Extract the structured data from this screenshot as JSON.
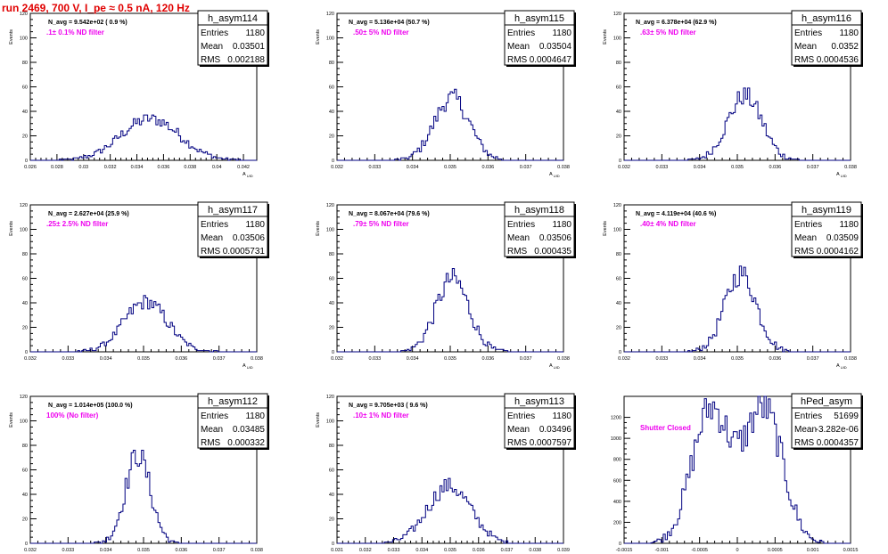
{
  "run_title": "run 2469,   700 V, I_pe ≈ 0.5 nA, 120 Hz",
  "colors": {
    "histogram": "#000080",
    "annotation": "#ee00ee",
    "title": "#e00000",
    "frame": "#000000"
  },
  "stats_labels": {
    "entries": "Entries",
    "mean": "Mean",
    "rms": "RMS"
  },
  "chart_data": [
    {
      "type": "histogram",
      "name": "h_asym114",
      "navg": "N_avg = 9.542e+02 ( 0.9 %)",
      "label": ".1± 0.1% ND filter",
      "entries": "1180",
      "mean": "0.03501",
      "rms": "0.002188",
      "ylabel": "Events",
      "xlabel": "A_UID",
      "xlim": [
        0.026,
        0.043
      ],
      "ylim": [
        0,
        120
      ],
      "xticks": [
        0.026,
        0.028,
        0.03,
        0.032,
        0.034,
        0.036,
        0.038,
        0.04,
        0.042
      ],
      "xticklabels": [
        "0.026",
        "0.028",
        "0.03",
        "0.032",
        "0.034",
        "0.036",
        "0.038",
        "0.04",
        "0.042"
      ],
      "yticks": [
        0,
        20,
        40,
        60,
        80,
        100,
        120
      ],
      "center": 0.03501,
      "sigma": 0.002188,
      "peak": 40,
      "lo": 0.0282,
      "hi": 0.0418
    },
    {
      "type": "histogram",
      "name": "h_asym115",
      "navg": "N_avg = 5.136e+04 (50.7 %)",
      "label": ".50± 5% ND filter",
      "entries": "1180",
      "mean": "0.03504",
      "rms": "0.0004647",
      "ylabel": "Events",
      "xlabel": "A_UID",
      "xlim": [
        0.032,
        0.038
      ],
      "ylim": [
        0,
        120
      ],
      "xticks": [
        0.032,
        0.033,
        0.034,
        0.035,
        0.036,
        0.037,
        0.038
      ],
      "xticklabels": [
        "0.032",
        "0.033",
        "0.034",
        "0.035",
        "0.036",
        "0.037",
        "0.038"
      ],
      "yticks": [
        0,
        20,
        40,
        60,
        80,
        100,
        120
      ],
      "center": 0.03504,
      "sigma": 0.0004647,
      "peak": 60,
      "lo": 0.0334,
      "hi": 0.0366
    },
    {
      "type": "histogram",
      "name": "h_asym116",
      "navg": "N_avg = 6.378e+04 (62.9 %)",
      "label": ".63± 5% ND filter",
      "entries": "1180",
      "mean": "0.0352",
      "rms": "0.0004536",
      "ylabel": "Events",
      "xlabel": "A_UID",
      "xlim": [
        0.032,
        0.038
      ],
      "ylim": [
        0,
        120
      ],
      "xticks": [
        0.032,
        0.033,
        0.034,
        0.035,
        0.036,
        0.037,
        0.038
      ],
      "xticklabels": [
        "0.032",
        "0.033",
        "0.034",
        "0.035",
        "0.036",
        "0.037",
        "0.038"
      ],
      "yticks": [
        0,
        20,
        40,
        60,
        80,
        100,
        120
      ],
      "center": 0.0352,
      "sigma": 0.0004536,
      "peak": 62,
      "lo": 0.0337,
      "hi": 0.0368
    },
    {
      "type": "histogram",
      "name": "h_asym117",
      "navg": "N_avg = 2.627e+04 (25.9 %)",
      "label": ".25± 2.5% ND filter",
      "entries": "1180",
      "mean": "0.03506",
      "rms": "0.0005731",
      "ylabel": "Events",
      "xlabel": "A_UID",
      "xlim": [
        0.032,
        0.038
      ],
      "ylim": [
        0,
        120
      ],
      "xticks": [
        0.032,
        0.033,
        0.034,
        0.035,
        0.036,
        0.037,
        0.038
      ],
      "xticklabels": [
        "0.032",
        "0.033",
        "0.034",
        "0.035",
        "0.036",
        "0.037",
        "0.038"
      ],
      "yticks": [
        0,
        20,
        40,
        60,
        80,
        100,
        120
      ],
      "center": 0.03506,
      "sigma": 0.0005731,
      "peak": 48,
      "lo": 0.0332,
      "hi": 0.037
    },
    {
      "type": "histogram",
      "name": "h_asym118",
      "navg": "N_avg = 8.067e+04 (79.6 %)",
      "label": ".79± 5% ND filter",
      "entries": "1180",
      "mean": "0.03506",
      "rms": "0.000435",
      "ylabel": "Events",
      "xlabel": "A_UID",
      "xlim": [
        0.032,
        0.038
      ],
      "ylim": [
        0,
        120
      ],
      "xticks": [
        0.032,
        0.033,
        0.034,
        0.035,
        0.036,
        0.037,
        0.038
      ],
      "xticklabels": [
        "0.032",
        "0.033",
        "0.034",
        "0.035",
        "0.036",
        "0.037",
        "0.038"
      ],
      "yticks": [
        0,
        20,
        40,
        60,
        80,
        100,
        120
      ],
      "center": 0.03506,
      "sigma": 0.000435,
      "peak": 70,
      "lo": 0.0336,
      "hi": 0.0366
    },
    {
      "type": "histogram",
      "name": "h_asym119",
      "navg": "N_avg = 4.119e+04 (40.6 %)",
      "label": ".40± 4% ND filter",
      "entries": "1180",
      "mean": "0.03509",
      "rms": "0.0004162",
      "ylabel": "Events",
      "xlabel": "A_UID",
      "xlim": [
        0.032,
        0.038
      ],
      "ylim": [
        0,
        120
      ],
      "xticks": [
        0.032,
        0.033,
        0.034,
        0.035,
        0.036,
        0.037,
        0.038
      ],
      "xticklabels": [
        "0.032",
        "0.033",
        "0.034",
        "0.035",
        "0.036",
        "0.037",
        "0.038"
      ],
      "yticks": [
        0,
        20,
        40,
        60,
        80,
        100,
        120
      ],
      "center": 0.03509,
      "sigma": 0.0004162,
      "peak": 75,
      "lo": 0.0337,
      "hi": 0.0366
    },
    {
      "type": "histogram",
      "name": "h_asym112",
      "navg": "N_avg = 1.014e+05 (100.0 %)",
      "label": "100% (No filter)",
      "entries": "1180",
      "mean": "0.03485",
      "rms": "0.000332",
      "ylabel": "Events",
      "xlabel": "A_UID",
      "xlim": [
        0.032,
        0.038
      ],
      "ylim": [
        0,
        120
      ],
      "xticks": [
        0.032,
        0.033,
        0.034,
        0.035,
        0.036,
        0.037,
        0.038
      ],
      "xticklabels": [
        "0.032",
        "0.033",
        "0.034",
        "0.035",
        "0.036",
        "0.037",
        "0.038"
      ],
      "yticks": [
        0,
        20,
        40,
        60,
        80,
        100,
        120
      ],
      "center": 0.03485,
      "sigma": 0.000332,
      "peak": 85,
      "lo": 0.0337,
      "hi": 0.0362
    },
    {
      "type": "histogram",
      "name": "h_asym113",
      "navg": "N_avg = 9.705e+03 ( 9.6 %)",
      "label": ".10± 1% ND filter",
      "entries": "1180",
      "mean": "0.03496",
      "rms": "0.0007597",
      "ylabel": "Events",
      "xlabel": "A_UID",
      "xlim": [
        0.031,
        0.039
      ],
      "ylim": [
        0,
        120
      ],
      "xticks": [
        0.031,
        0.032,
        0.033,
        0.034,
        0.035,
        0.036,
        0.037,
        0.038,
        0.039
      ],
      "xticklabels": [
        "0.031",
        "0.032",
        "0.033",
        "0.034",
        "0.035",
        "0.036",
        "0.037",
        "0.038",
        "0.039"
      ],
      "yticks": [
        0,
        20,
        40,
        60,
        80,
        100,
        120
      ],
      "center": 0.03496,
      "sigma": 0.0007597,
      "peak": 55,
      "lo": 0.0327,
      "hi": 0.0374
    },
    {
      "type": "histogram",
      "name": "hPed_asym",
      "navg": "",
      "label": "Shutter Closed",
      "entries": "51699",
      "mean": "-3.282e-06",
      "rms": "0.0004357",
      "ylabel": "",
      "xlabel": "",
      "xlim": [
        -0.0015,
        0.0015
      ],
      "ylim": [
        0,
        1400
      ],
      "xticks": [
        -0.0015,
        -0.001,
        -0.0005,
        0,
        0.0005,
        0.001,
        0.0015
      ],
      "xticklabels": [
        "-0.0015",
        "-0.001",
        "-0.0005",
        "0",
        "0.0005",
        "0.001",
        "0.0015"
      ],
      "yticks": [
        0,
        200,
        400,
        600,
        800,
        1000,
        1200
      ],
      "bimodal": true,
      "centers": [
        -0.00035,
        0.00035
      ],
      "sigma": 0.00025,
      "peak": 1300,
      "lo": -0.00115,
      "hi": 0.00115
    }
  ]
}
